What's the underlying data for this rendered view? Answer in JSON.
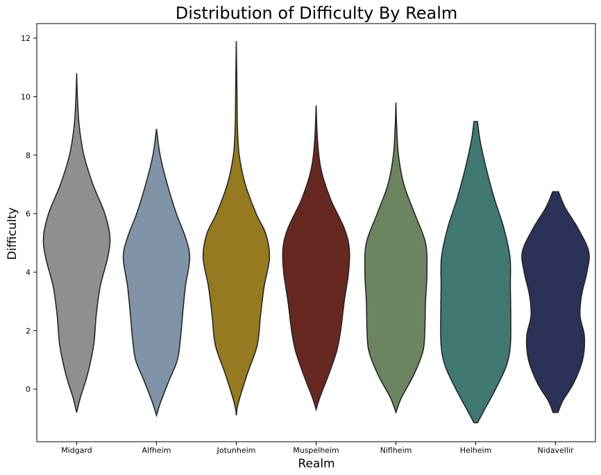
{
  "chart_data": {
    "type": "violin",
    "title": "Distribution of Difficulty By Realm",
    "xlabel": "Realm",
    "ylabel": "Difficulty",
    "ylim": [
      -1.8,
      12.5
    ],
    "yticks": [
      0,
      2,
      4,
      6,
      8,
      10,
      12
    ],
    "grid": false,
    "legend": "none",
    "categories": [
      "Midgard",
      "Alfheim",
      "Jotunheim",
      "Muspelheim",
      "Niflheim",
      "Helheim",
      "Nidavellir"
    ],
    "colors": [
      "#8f8f8f",
      "#8093a7",
      "#957a21",
      "#672821",
      "#6d8462",
      "#407971",
      "#2b3157"
    ],
    "violins": [
      {
        "name": "Midgard",
        "min": -0.8,
        "max": 10.8,
        "profile": [
          [
            -0.8,
            0.0
          ],
          [
            -0.3,
            0.1
          ],
          [
            0.5,
            0.3
          ],
          [
            1.5,
            0.47
          ],
          [
            2.5,
            0.54
          ],
          [
            3.5,
            0.65
          ],
          [
            4.5,
            0.86
          ],
          [
            5.2,
            0.92
          ],
          [
            6.0,
            0.78
          ],
          [
            7.0,
            0.45
          ],
          [
            8.0,
            0.2
          ],
          [
            9.0,
            0.07
          ],
          [
            10.0,
            0.02
          ],
          [
            10.8,
            0.0
          ]
        ]
      },
      {
        "name": "Alfheim",
        "min": -0.9,
        "max": 8.9,
        "profile": [
          [
            -0.9,
            0.0
          ],
          [
            -0.5,
            0.1
          ],
          [
            0.3,
            0.35
          ],
          [
            1.0,
            0.58
          ],
          [
            1.8,
            0.67
          ],
          [
            2.5,
            0.72
          ],
          [
            3.5,
            0.8
          ],
          [
            4.5,
            0.92
          ],
          [
            5.2,
            0.8
          ],
          [
            6.0,
            0.55
          ],
          [
            7.0,
            0.3
          ],
          [
            8.0,
            0.1
          ],
          [
            8.9,
            0.0
          ]
        ]
      },
      {
        "name": "Jotunheim",
        "min": -0.9,
        "max": 11.9,
        "profile": [
          [
            -0.9,
            0.0
          ],
          [
            -0.5,
            0.05
          ],
          [
            0.5,
            0.3
          ],
          [
            1.5,
            0.58
          ],
          [
            2.5,
            0.67
          ],
          [
            3.5,
            0.77
          ],
          [
            4.5,
            0.92
          ],
          [
            5.3,
            0.82
          ],
          [
            6.0,
            0.55
          ],
          [
            7.0,
            0.25
          ],
          [
            8.0,
            0.08
          ],
          [
            9.0,
            0.03
          ],
          [
            10.0,
            0.02
          ],
          [
            11.0,
            0.01
          ],
          [
            11.9,
            0.0
          ]
        ]
      },
      {
        "name": "Muspelheim",
        "min": -0.7,
        "max": 9.7,
        "profile": [
          [
            -0.7,
            0.0
          ],
          [
            -0.3,
            0.1
          ],
          [
            0.5,
            0.35
          ],
          [
            1.3,
            0.57
          ],
          [
            2.0,
            0.68
          ],
          [
            3.0,
            0.78
          ],
          [
            4.0,
            0.9
          ],
          [
            4.8,
            0.92
          ],
          [
            5.5,
            0.78
          ],
          [
            6.5,
            0.4
          ],
          [
            7.5,
            0.14
          ],
          [
            8.5,
            0.04
          ],
          [
            9.7,
            0.0
          ]
        ]
      },
      {
        "name": "Niflheim",
        "min": -0.8,
        "max": 9.8,
        "profile": [
          [
            -0.8,
            0.0
          ],
          [
            -0.3,
            0.15
          ],
          [
            0.5,
            0.5
          ],
          [
            1.3,
            0.75
          ],
          [
            2.0,
            0.8
          ],
          [
            3.0,
            0.82
          ],
          [
            4.0,
            0.86
          ],
          [
            5.0,
            0.82
          ],
          [
            6.0,
            0.52
          ],
          [
            7.0,
            0.22
          ],
          [
            8.0,
            0.07
          ],
          [
            9.0,
            0.02
          ],
          [
            9.8,
            0.0
          ]
        ]
      },
      {
        "name": "Helheim",
        "min": -1.15,
        "max": 9.15,
        "profile": [
          [
            -1.15,
            0.05
          ],
          [
            -0.8,
            0.2
          ],
          [
            0.0,
            0.55
          ],
          [
            0.8,
            0.85
          ],
          [
            1.5,
            0.96
          ],
          [
            2.5,
            0.97
          ],
          [
            3.5,
            0.96
          ],
          [
            4.5,
            0.95
          ],
          [
            5.5,
            0.78
          ],
          [
            6.5,
            0.52
          ],
          [
            7.5,
            0.3
          ],
          [
            8.5,
            0.12
          ],
          [
            9.15,
            0.05
          ]
        ]
      },
      {
        "name": "Nidavellir",
        "min": -0.8,
        "max": 6.75,
        "profile": [
          [
            -0.8,
            0.07
          ],
          [
            -0.4,
            0.2
          ],
          [
            0.2,
            0.5
          ],
          [
            1.0,
            0.75
          ],
          [
            1.8,
            0.8
          ],
          [
            2.5,
            0.68
          ],
          [
            3.2,
            0.72
          ],
          [
            4.0,
            0.87
          ],
          [
            4.7,
            0.92
          ],
          [
            5.5,
            0.62
          ],
          [
            6.2,
            0.27
          ],
          [
            6.75,
            0.08
          ]
        ]
      }
    ]
  }
}
